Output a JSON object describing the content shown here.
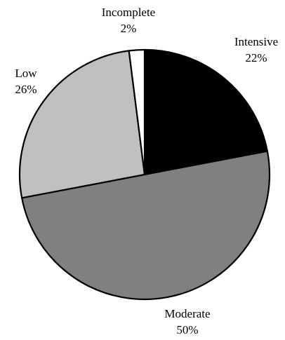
{
  "chart_data": {
    "type": "pie",
    "title": "",
    "slices": [
      {
        "label": "Intensive",
        "value": 22,
        "display": "22%",
        "color": "#000000"
      },
      {
        "label": "Moderate",
        "value": 50,
        "display": "50%",
        "color": "#808080"
      },
      {
        "label": "Low",
        "value": 26,
        "display": "26%",
        "color": "#c0c0c0"
      },
      {
        "label": "Incomplete",
        "value": 2,
        "display": "2%",
        "color": "#ffffff"
      }
    ],
    "start_angle_deg": 0,
    "direction": "clockwise",
    "legend": "none"
  }
}
